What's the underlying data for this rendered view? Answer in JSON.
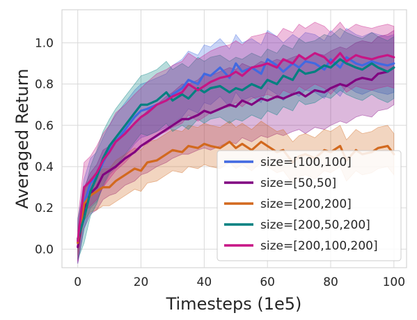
{
  "chart_data": {
    "type": "line",
    "title": "",
    "xlabel": "Timesteps (1e5)",
    "ylabel": "Averaged Return",
    "xlim": [
      -5,
      104
    ],
    "ylim": [
      -0.09,
      1.16
    ],
    "x_ticks": [
      0,
      20,
      40,
      60,
      80,
      100
    ],
    "y_ticks": [
      0.0,
      0.2,
      0.4,
      0.6,
      0.8,
      1.0
    ],
    "x_tick_labels": [
      "0",
      "20",
      "40",
      "60",
      "80",
      "100"
    ],
    "y_tick_labels": [
      "0.0",
      "0.2",
      "0.4",
      "0.6",
      "0.8",
      "1.0"
    ],
    "grid": true,
    "legend_position": "lower-right",
    "shaded_band": "variance around mean",
    "series": [
      {
        "name": "size=[100,100]",
        "color": "#4169e1",
        "x": [
          0,
          2,
          4,
          6,
          8,
          10,
          12,
          15,
          18,
          20,
          22,
          25,
          28,
          30,
          33,
          35,
          38,
          40,
          42,
          45,
          48,
          50,
          52,
          55,
          58,
          60,
          63,
          65,
          68,
          70,
          72,
          75,
          78,
          80,
          83,
          85,
          88,
          90,
          93,
          95,
          98,
          100
        ],
        "y": [
          0.03,
          0.22,
          0.32,
          0.35,
          0.42,
          0.48,
          0.52,
          0.58,
          0.64,
          0.67,
          0.68,
          0.7,
          0.72,
          0.75,
          0.78,
          0.82,
          0.8,
          0.85,
          0.84,
          0.88,
          0.83,
          0.9,
          0.86,
          0.88,
          0.85,
          0.92,
          0.89,
          0.86,
          0.9,
          0.88,
          0.91,
          0.9,
          0.87,
          0.92,
          0.88,
          0.93,
          0.9,
          0.89,
          0.91,
          0.9,
          0.89,
          0.9
        ],
        "band": [
          0.1,
          0.12,
          0.12,
          0.12,
          0.12,
          0.12,
          0.13,
          0.13,
          0.13,
          0.13,
          0.13,
          0.13,
          0.13,
          0.14,
          0.14,
          0.14,
          0.14,
          0.14,
          0.14,
          0.14,
          0.14,
          0.14,
          0.14,
          0.14,
          0.14,
          0.14,
          0.14,
          0.14,
          0.14,
          0.14,
          0.14,
          0.14,
          0.14,
          0.14,
          0.14,
          0.14,
          0.14,
          0.14,
          0.14,
          0.14,
          0.14,
          0.14
        ]
      },
      {
        "name": "size=[50,50]",
        "color": "#800080",
        "x": [
          0,
          2,
          4,
          6,
          8,
          10,
          12,
          15,
          18,
          20,
          22,
          25,
          28,
          30,
          33,
          35,
          38,
          40,
          42,
          45,
          48,
          50,
          52,
          55,
          58,
          60,
          63,
          65,
          68,
          70,
          72,
          75,
          78,
          80,
          83,
          85,
          88,
          90,
          93,
          95,
          98,
          100
        ],
        "y": [
          0.01,
          0.2,
          0.27,
          0.3,
          0.36,
          0.38,
          0.4,
          0.44,
          0.47,
          0.5,
          0.52,
          0.55,
          0.58,
          0.6,
          0.63,
          0.63,
          0.65,
          0.67,
          0.66,
          0.68,
          0.7,
          0.69,
          0.72,
          0.7,
          0.73,
          0.72,
          0.74,
          0.73,
          0.75,
          0.76,
          0.74,
          0.77,
          0.76,
          0.78,
          0.8,
          0.79,
          0.82,
          0.83,
          0.82,
          0.85,
          0.86,
          0.88
        ],
        "band": [
          0.08,
          0.1,
          0.1,
          0.11,
          0.12,
          0.12,
          0.13,
          0.13,
          0.14,
          0.14,
          0.15,
          0.15,
          0.16,
          0.16,
          0.17,
          0.17,
          0.17,
          0.18,
          0.18,
          0.18,
          0.18,
          0.18,
          0.18,
          0.18,
          0.18,
          0.18,
          0.18,
          0.18,
          0.18,
          0.18,
          0.18,
          0.18,
          0.18,
          0.18,
          0.18,
          0.18,
          0.18,
          0.18,
          0.18,
          0.18,
          0.18,
          0.18
        ]
      },
      {
        "name": "size=[200,200]",
        "color": "#d2691e",
        "x": [
          0,
          2,
          4,
          6,
          8,
          10,
          12,
          15,
          18,
          20,
          22,
          25,
          28,
          30,
          33,
          35,
          38,
          40,
          42,
          45,
          48,
          50,
          52,
          55,
          58,
          60,
          63,
          65,
          68,
          70,
          72,
          75,
          78,
          80,
          83,
          85,
          88,
          90,
          93,
          95,
          98,
          100
        ],
        "y": [
          0.03,
          0.22,
          0.26,
          0.28,
          0.3,
          0.3,
          0.33,
          0.36,
          0.39,
          0.38,
          0.42,
          0.43,
          0.46,
          0.48,
          0.47,
          0.5,
          0.49,
          0.51,
          0.5,
          0.49,
          0.52,
          0.49,
          0.51,
          0.48,
          0.52,
          0.5,
          0.47,
          0.48,
          0.42,
          0.45,
          0.46,
          0.44,
          0.48,
          0.47,
          0.5,
          0.43,
          0.48,
          0.46,
          0.47,
          0.49,
          0.5,
          0.46
        ],
        "band": [
          0.06,
          0.08,
          0.08,
          0.09,
          0.09,
          0.09,
          0.1,
          0.1,
          0.1,
          0.1,
          0.1,
          0.1,
          0.1,
          0.1,
          0.1,
          0.1,
          0.1,
          0.1,
          0.1,
          0.1,
          0.1,
          0.1,
          0.1,
          0.1,
          0.1,
          0.1,
          0.1,
          0.1,
          0.1,
          0.1,
          0.1,
          0.1,
          0.1,
          0.1,
          0.1,
          0.1,
          0.1,
          0.1,
          0.1,
          0.1,
          0.1,
          0.1
        ]
      },
      {
        "name": "size=[200,50,200]",
        "color": "#008080",
        "x": [
          0,
          2,
          4,
          6,
          8,
          10,
          12,
          15,
          18,
          20,
          22,
          25,
          28,
          30,
          33,
          35,
          38,
          40,
          42,
          45,
          48,
          50,
          52,
          55,
          58,
          60,
          63,
          65,
          68,
          70,
          72,
          75,
          78,
          80,
          83,
          85,
          88,
          90,
          93,
          95,
          98,
          100
        ],
        "y": [
          0.05,
          0.15,
          0.28,
          0.35,
          0.44,
          0.5,
          0.54,
          0.6,
          0.66,
          0.7,
          0.7,
          0.72,
          0.76,
          0.72,
          0.75,
          0.73,
          0.78,
          0.76,
          0.78,
          0.79,
          0.76,
          0.78,
          0.77,
          0.8,
          0.78,
          0.82,
          0.8,
          0.84,
          0.82,
          0.87,
          0.85,
          0.86,
          0.89,
          0.88,
          0.92,
          0.9,
          0.88,
          0.87,
          0.9,
          0.88,
          0.86,
          0.88
        ],
        "band": [
          0.1,
          0.12,
          0.12,
          0.13,
          0.13,
          0.13,
          0.14,
          0.14,
          0.14,
          0.14,
          0.15,
          0.15,
          0.15,
          0.15,
          0.15,
          0.15,
          0.15,
          0.15,
          0.15,
          0.15,
          0.15,
          0.15,
          0.15,
          0.15,
          0.15,
          0.15,
          0.15,
          0.15,
          0.15,
          0.15,
          0.15,
          0.15,
          0.15,
          0.15,
          0.15,
          0.15,
          0.15,
          0.15,
          0.15,
          0.15,
          0.15,
          0.15
        ]
      },
      {
        "name": "size=[200,100,200]",
        "color": "#c71585",
        "x": [
          0,
          2,
          4,
          6,
          8,
          10,
          12,
          15,
          18,
          20,
          22,
          25,
          28,
          30,
          33,
          35,
          38,
          40,
          42,
          45,
          48,
          50,
          52,
          55,
          58,
          60,
          63,
          65,
          68,
          70,
          72,
          75,
          78,
          80,
          83,
          85,
          88,
          90,
          93,
          95,
          98,
          100
        ],
        "y": [
          0.04,
          0.3,
          0.33,
          0.37,
          0.43,
          0.47,
          0.52,
          0.56,
          0.61,
          0.64,
          0.66,
          0.7,
          0.72,
          0.74,
          0.76,
          0.8,
          0.77,
          0.79,
          0.81,
          0.83,
          0.84,
          0.86,
          0.84,
          0.88,
          0.89,
          0.9,
          0.88,
          0.92,
          0.9,
          0.94,
          0.92,
          0.95,
          0.93,
          0.9,
          0.95,
          0.91,
          0.94,
          0.93,
          0.92,
          0.93,
          0.94,
          0.93
        ],
        "band": [
          0.1,
          0.12,
          0.12,
          0.13,
          0.13,
          0.13,
          0.14,
          0.14,
          0.14,
          0.14,
          0.15,
          0.15,
          0.15,
          0.15,
          0.15,
          0.15,
          0.15,
          0.15,
          0.15,
          0.15,
          0.15,
          0.15,
          0.15,
          0.15,
          0.15,
          0.15,
          0.15,
          0.15,
          0.15,
          0.15,
          0.15,
          0.15,
          0.15,
          0.15,
          0.15,
          0.15,
          0.15,
          0.15,
          0.15,
          0.15,
          0.15,
          0.15
        ]
      }
    ]
  }
}
